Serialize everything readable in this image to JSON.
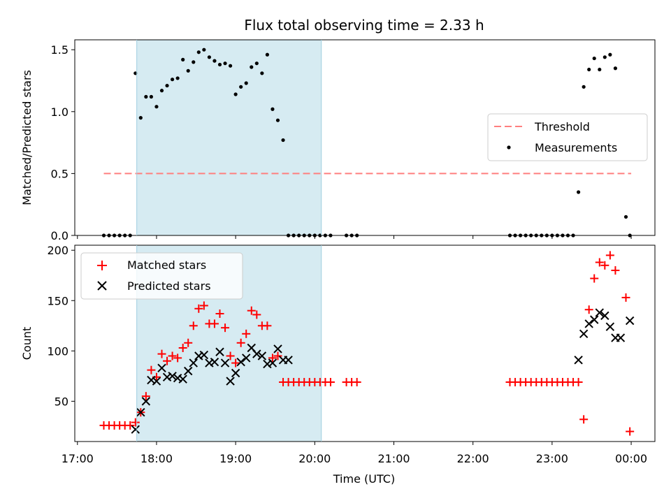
{
  "chart_data": {
    "title": "Flux total observing time = 2.33 h",
    "shaded_region": {
      "x_start": "17:45",
      "x_end": "20:05",
      "color": "#add8e6"
    },
    "x_axis": {
      "label": "Time (UTC)",
      "range": [
        "16:58",
        "00:18"
      ],
      "ticks": [
        "17:00",
        "18:00",
        "19:00",
        "20:00",
        "21:00",
        "22:00",
        "23:00",
        "00:00"
      ],
      "tick_minutes": [
        1020,
        1080,
        1140,
        1200,
        1260,
        1320,
        1380,
        1440
      ]
    },
    "panels": [
      {
        "type": "scatter",
        "ylabel": "Matched/Predicted stars",
        "ylim": [
          0,
          1.58
        ],
        "yticks": [
          "0.0",
          "0.5",
          "1.0",
          "1.5"
        ],
        "ytick_values": [
          0,
          0.5,
          1.0,
          1.5
        ],
        "threshold": {
          "name": "Threshold",
          "value": 0.5,
          "x_start": "17:20",
          "x_end": "00:00",
          "color": "#ff7f7f"
        },
        "legend": {
          "position": "center-right",
          "entries": [
            "Threshold",
            "Measurements"
          ]
        },
        "series": [
          {
            "name": "Measurements",
            "color": "#000000",
            "x": [
              "17:20",
              "17:24",
              "17:28",
              "17:32",
              "17:36",
              "17:40",
              "17:44",
              "17:48",
              "17:52",
              "17:56",
              "18:00",
              "18:04",
              "18:08",
              "18:12",
              "18:16",
              "18:20",
              "18:24",
              "18:28",
              "18:32",
              "18:36",
              "18:40",
              "18:44",
              "18:48",
              "18:52",
              "18:56",
              "19:00",
              "19:04",
              "19:08",
              "19:12",
              "19:16",
              "19:20",
              "19:24",
              "19:28",
              "19:32",
              "19:36",
              "19:40",
              "19:44",
              "19:48",
              "19:52",
              "19:56",
              "20:00",
              "20:04",
              "20:08",
              "20:12",
              "20:24",
              "20:28",
              "20:32",
              "22:28",
              "22:32",
              "22:36",
              "22:40",
              "22:44",
              "22:48",
              "22:52",
              "22:56",
              "23:00",
              "23:04",
              "23:08",
              "23:12",
              "23:16",
              "23:20",
              "23:24",
              "23:28",
              "23:32",
              "23:36",
              "23:40",
              "23:44",
              "23:48",
              "23:56",
              "23:59"
            ],
            "y": [
              0,
              0,
              0,
              0,
              0,
              0,
              1.31,
              0.95,
              1.12,
              1.12,
              1.04,
              1.17,
              1.21,
              1.26,
              1.27,
              1.42,
              1.33,
              1.4,
              1.48,
              1.5,
              1.44,
              1.41,
              1.38,
              1.39,
              1.37,
              1.14,
              1.2,
              1.23,
              1.36,
              1.39,
              1.31,
              1.46,
              1.02,
              0.93,
              0.77,
              0,
              0,
              0,
              0,
              0,
              0,
              0,
              0,
              0,
              0,
              0,
              0,
              0,
              0,
              0,
              0,
              0,
              0,
              0,
              0,
              0,
              0,
              0,
              0,
              0,
              0.35,
              1.2,
              1.34,
              1.43,
              1.34,
              1.44,
              1.46,
              1.35,
              0.15,
              0
            ]
          }
        ]
      },
      {
        "type": "scatter",
        "ylabel": "Count",
        "ylim": [
          10,
          205
        ],
        "yticks": [
          "50",
          "100",
          "150",
          "200"
        ],
        "ytick_values": [
          50,
          100,
          150,
          200
        ],
        "legend": {
          "position": "top-left",
          "entries": [
            "Matched stars",
            "Predicted stars"
          ]
        },
        "series": [
          {
            "name": "Matched stars",
            "marker": "+",
            "color": "#ff0000",
            "x": [
              "17:20",
              "17:24",
              "17:28",
              "17:32",
              "17:36",
              "17:40",
              "17:44",
              "17:48",
              "17:52",
              "17:56",
              "18:00",
              "18:04",
              "18:08",
              "18:12",
              "18:16",
              "18:20",
              "18:24",
              "18:28",
              "18:32",
              "18:36",
              "18:40",
              "18:44",
              "18:48",
              "18:52",
              "18:56",
              "19:00",
              "19:04",
              "19:08",
              "19:12",
              "19:16",
              "19:20",
              "19:24",
              "19:28",
              "19:32",
              "19:36",
              "19:40",
              "19:44",
              "19:48",
              "19:52",
              "19:56",
              "20:00",
              "20:04",
              "20:08",
              "20:12",
              "20:24",
              "20:28",
              "20:32",
              "22:28",
              "22:32",
              "22:36",
              "22:40",
              "22:44",
              "22:48",
              "22:52",
              "22:56",
              "23:00",
              "23:04",
              "23:08",
              "23:12",
              "23:16",
              "23:20",
              "23:24",
              "23:28",
              "23:32",
              "23:36",
              "23:40",
              "23:44",
              "23:48",
              "23:56",
              "23:59"
            ],
            "y": [
              26,
              26,
              26,
              26,
              26,
              26,
              29,
              39,
              55,
              81,
              74,
              97,
              90,
              95,
              93,
              103,
              108,
              125,
              142,
              145,
              127,
              127,
              137,
              123,
              95,
              88,
              108,
              117,
              140,
              136,
              125,
              125,
              93,
              95,
              69,
              69,
              69,
              69,
              69,
              69,
              69,
              69,
              69,
              69,
              69,
              69,
              69,
              69,
              69,
              69,
              69,
              69,
              69,
              69,
              69,
              69,
              69,
              69,
              69,
              69,
              69,
              32,
              141,
              172,
              188,
              185,
              195,
              180,
              153,
              20
            ]
          },
          {
            "name": "Predicted stars",
            "marker": "x",
            "color": "#000000",
            "x": [
              "17:44",
              "17:48",
              "17:52",
              "17:56",
              "18:00",
              "18:04",
              "18:08",
              "18:12",
              "18:16",
              "18:20",
              "18:24",
              "18:28",
              "18:32",
              "18:36",
              "18:40",
              "18:44",
              "18:48",
              "18:52",
              "18:56",
              "19:00",
              "19:04",
              "19:08",
              "19:12",
              "19:16",
              "19:20",
              "19:24",
              "19:28",
              "19:32",
              "19:36",
              "19:40",
              "23:20",
              "23:24",
              "23:28",
              "23:32",
              "23:36",
              "23:40",
              "23:44",
              "23:48",
              "23:52",
              "23:59"
            ],
            "y": [
              22,
              39,
              50,
              71,
              70,
              83,
              74,
              75,
              73,
              72,
              80,
              88,
              95,
              96,
              88,
              89,
              99,
              88,
              70,
              78,
              89,
              93,
              103,
              97,
              95,
              87,
              88,
              102,
              91,
              91,
              91,
              117,
              127,
              131,
              138,
              135,
              124,
              113,
              113,
              130
            ]
          }
        ]
      }
    ]
  }
}
